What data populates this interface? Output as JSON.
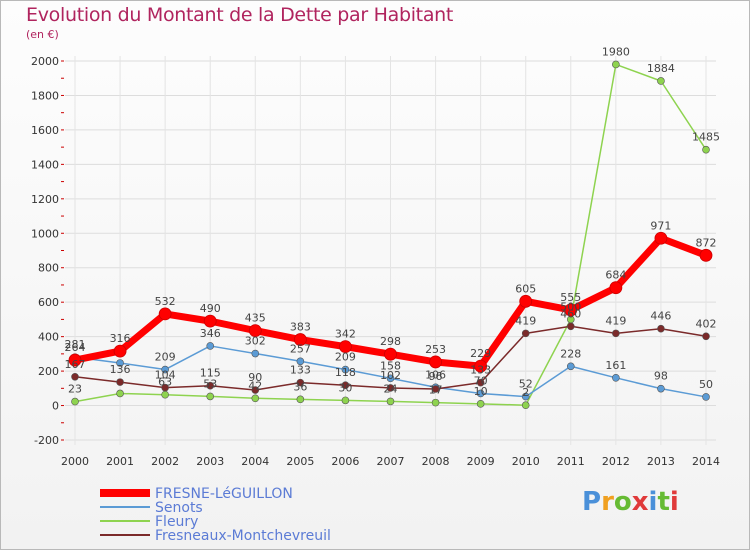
{
  "header": {
    "title": "Evolution du Montant de la Dette par Habitant",
    "subtitle": "(en €)"
  },
  "logo": {
    "text": "Proxiti"
  },
  "colors": {
    "title": "#b0245e",
    "grid": "#dddddd",
    "axis_tick": "#cc0000"
  },
  "chart_data": {
    "type": "line",
    "title": "Evolution du Montant de la Dette par Habitant",
    "subtitle": "(en €)",
    "xlabel": "",
    "ylabel": "",
    "x": [
      "2000",
      "2001",
      "2002",
      "2003",
      "2004",
      "2005",
      "2006",
      "2007",
      "2008",
      "2009",
      "2010",
      "2011",
      "2012",
      "2013",
      "2014"
    ],
    "ylim": [
      -200,
      2000
    ],
    "yticks": [
      -200,
      0,
      200,
      400,
      600,
      800,
      1000,
      1200,
      1400,
      1600,
      1800,
      2000
    ],
    "grid": true,
    "legend_position": "bottom-left",
    "series": [
      {
        "name": "FRESNE-LéGUILLON",
        "color": "#ff0000",
        "values": [
          264,
          316,
          532,
          490,
          435,
          383,
          342,
          298,
          253,
          229,
          605,
          555,
          684,
          971,
          872
        ],
        "labels": [
          "264",
          "316",
          "532",
          "490",
          "435",
          "383",
          "342",
          "298",
          "253",
          "229",
          "605",
          "555",
          "684",
          "971",
          "872"
        ]
      },
      {
        "name": "Senots",
        "color": "#5b9bd5",
        "values": [
          281,
          247,
          209,
          346,
          302,
          257,
          209,
          158,
          106,
          70,
          52,
          228,
          161,
          98,
          50
        ],
        "labels": [
          "281",
          "",
          "209",
          "346",
          "302",
          "257",
          "209",
          "158",
          "106",
          "70",
          "52",
          "228",
          "161",
          "98",
          "50"
        ]
      },
      {
        "name": "Fleury",
        "color": "#8ed34f",
        "values": [
          23,
          70,
          63,
          53,
          42,
          36,
          30,
          24,
          17,
          10,
          2,
          500,
          1980,
          1884,
          1485
        ],
        "labels": [
          "23",
          "",
          "63",
          "53",
          "42",
          "36",
          "30",
          "24",
          "17",
          "10",
          "2",
          "500",
          "1980",
          "1884",
          "1485"
        ]
      },
      {
        "name": "Fresneaux-Montchevreuil",
        "color": "#7b2a2a",
        "values": [
          167,
          136,
          104,
          115,
          90,
          133,
          118,
          102,
          96,
          133,
          419,
          460,
          419,
          446,
          402
        ],
        "labels": [
          "167",
          "136",
          "104",
          "115",
          "90",
          "133",
          "118",
          "102",
          "96",
          "133",
          "419",
          "460",
          "419",
          "446",
          "402"
        ]
      }
    ]
  }
}
